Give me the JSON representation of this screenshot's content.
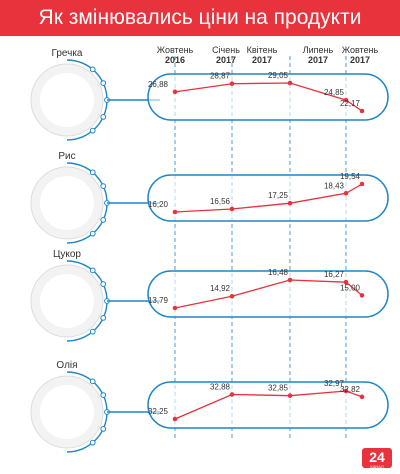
{
  "header": {
    "title": "Як змінювались ціни на продукти"
  },
  "colors": {
    "accent": "#e8323c",
    "frame": "#1f86c7",
    "line": "#e8323c",
    "text": "#333333"
  },
  "products": [
    {
      "name": "Гречка",
      "icon": "buckwheat-icon"
    },
    {
      "name": "Рис",
      "icon": "rice-icon"
    },
    {
      "name": "Цукор",
      "icon": "sugar-icon"
    },
    {
      "name": "Олія",
      "icon": "oil-icon"
    }
  ],
  "chart_data": {
    "type": "line",
    "categories": [
      {
        "month": "Жовтень",
        "year": "2016"
      },
      {
        "month": "Січень",
        "year": "2017"
      },
      {
        "month": "Квітень",
        "year": "2017"
      },
      {
        "month": "Липень",
        "year": "2017"
      },
      {
        "month": "Жовтень",
        "year": "2017"
      }
    ],
    "series": [
      {
        "name": "Гречка",
        "values": [
          26.88,
          28.87,
          29.05,
          24.85,
          22.17
        ],
        "labels": [
          "26,88",
          "28,87",
          "29,05",
          "24,85",
          "22,17"
        ]
      },
      {
        "name": "Рис",
        "values": [
          16.2,
          16.56,
          17.25,
          18.43,
          19.54
        ],
        "labels": [
          "16,20",
          "16,56",
          "17,25",
          "18,43",
          "19,54"
        ]
      },
      {
        "name": "Цукор",
        "values": [
          13.79,
          14.92,
          16.48,
          16.27,
          15.0
        ],
        "labels": [
          "13,79",
          "14,92",
          "16,48",
          "16,27",
          "15,00"
        ]
      },
      {
        "name": "Олія",
        "values": [
          32.25,
          32.88,
          32.85,
          32.97,
          32.82
        ],
        "labels": [
          "32,25",
          "32,88",
          "32,85",
          "32,97",
          "32,82"
        ]
      }
    ]
  },
  "logo": {
    "text": "24",
    "subtext": "КАНАЛ"
  }
}
